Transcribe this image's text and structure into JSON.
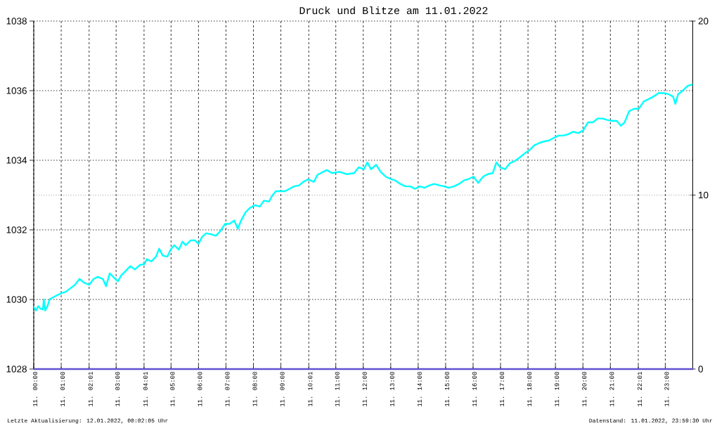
{
  "chart_data": {
    "type": "line",
    "title": "Druck und Blitze am 11.01.2022",
    "xlim": [
      "2022-01-11T00:00",
      "2022-01-12T00:00"
    ],
    "xticks": [
      {
        "value": "2022-01-11T00:00",
        "label": "11. 00:00"
      },
      {
        "value": "2022-01-11T01:00",
        "label": "11. 01:00"
      },
      {
        "value": "2022-01-11T02:01",
        "label": "11. 02:01"
      },
      {
        "value": "2022-01-11T03:00",
        "label": "11. 03:00"
      },
      {
        "value": "2022-01-11T04:01",
        "label": "11. 04:01"
      },
      {
        "value": "2022-01-11T05:00",
        "label": "11. 05:00"
      },
      {
        "value": "2022-01-11T06:00",
        "label": "11. 06:00"
      },
      {
        "value": "2022-01-11T07:00",
        "label": "11. 07:00"
      },
      {
        "value": "2022-01-11T08:00",
        "label": "11. 08:00"
      },
      {
        "value": "2022-01-11T09:00",
        "label": "11. 09:00"
      },
      {
        "value": "2022-01-11T10:01",
        "label": "11. 10:01"
      },
      {
        "value": "2022-01-11T11:00",
        "label": "11. 11:00"
      },
      {
        "value": "2022-01-11T12:00",
        "label": "11. 12:00"
      },
      {
        "value": "2022-01-11T13:00",
        "label": "11. 13:00"
      },
      {
        "value": "2022-01-11T14:00",
        "label": "11. 14:00"
      },
      {
        "value": "2022-01-11T15:00",
        "label": "11. 15:00"
      },
      {
        "value": "2022-01-11T16:00",
        "label": "11. 16:00"
      },
      {
        "value": "2022-01-11T17:00",
        "label": "11. 17:00"
      },
      {
        "value": "2022-01-11T18:00",
        "label": "11. 18:00"
      },
      {
        "value": "2022-01-11T19:00",
        "label": "11. 19:00"
      },
      {
        "value": "2022-01-11T20:00",
        "label": "11. 20:00"
      },
      {
        "value": "2022-01-11T21:00",
        "label": "11. 21:00"
      },
      {
        "value": "2022-01-11T22:01",
        "label": "11. 22:01"
      },
      {
        "value": "2022-01-11T23:00",
        "label": "11. 23:00"
      }
    ],
    "ylim": [
      1028,
      1038
    ],
    "yticks": [
      1028,
      1030,
      1032,
      1034,
      1036,
      1038
    ],
    "y2lim": [
      0,
      20
    ],
    "y2ticks": [
      0,
      10,
      20
    ],
    "grid": true,
    "ref_lines": [
      {
        "axis": "y2",
        "value": 10,
        "color": "#b2b2b2",
        "line_style": "dotted"
      }
    ],
    "series": [
      {
        "color": "#00ffff",
        "x": [
          "2022-01-11T00:00",
          "2022-01-11T00:05",
          "2022-01-11T00:10",
          "2022-01-11T00:14",
          "2022-01-11T00:20",
          "2022-01-11T00:22",
          "2022-01-11T00:25",
          "2022-01-11T00:30",
          "2022-01-11T00:35",
          "2022-01-11T00:45",
          "2022-01-11T01:00",
          "2022-01-11T01:10",
          "2022-01-11T01:20",
          "2022-01-11T01:30",
          "2022-01-11T01:40",
          "2022-01-11T01:50",
          "2022-01-11T02:01",
          "2022-01-11T02:11",
          "2022-01-11T02:20",
          "2022-01-11T02:31",
          "2022-01-11T02:38",
          "2022-01-11T02:46",
          "2022-01-11T02:56",
          "2022-01-11T03:04",
          "2022-01-11T03:11",
          "2022-01-11T03:21",
          "2022-01-11T03:31",
          "2022-01-11T03:41",
          "2022-01-11T03:52",
          "2022-01-11T04:02",
          "2022-01-11T04:07",
          "2022-01-11T04:17",
          "2022-01-11T04:27",
          "2022-01-11T04:34",
          "2022-01-11T04:42",
          "2022-01-11T04:52",
          "2022-01-11T04:59",
          "2022-01-11T05:07",
          "2022-01-11T05:17",
          "2022-01-11T05:25",
          "2022-01-11T05:32",
          "2022-01-11T05:43",
          "2022-01-11T05:52",
          "2022-01-11T06:00",
          "2022-01-11T06:08",
          "2022-01-11T06:17",
          "2022-01-11T06:28",
          "2022-01-11T06:38",
          "2022-01-11T06:48",
          "2022-01-11T06:58",
          "2022-01-11T07:08",
          "2022-01-11T07:18",
          "2022-01-11T07:26",
          "2022-01-11T07:33",
          "2022-01-11T07:43",
          "2022-01-11T07:53",
          "2022-01-11T08:04",
          "2022-01-11T08:14",
          "2022-01-11T08:23",
          "2022-01-11T08:34",
          "2022-01-11T08:41",
          "2022-01-11T08:49",
          "2022-01-11T08:59",
          "2022-01-11T09:09",
          "2022-01-11T09:19",
          "2022-01-11T09:29",
          "2022-01-11T09:40",
          "2022-01-11T09:49",
          "2022-01-11T09:59",
          "2022-01-11T10:12",
          "2022-01-11T10:20",
          "2022-01-11T10:30",
          "2022-01-11T10:40",
          "2022-01-11T10:52",
          "2022-01-11T11:08",
          "2022-01-11T11:24",
          "2022-01-11T11:40",
          "2022-01-11T11:50",
          "2022-01-11T12:01",
          "2022-01-11T12:09",
          "2022-01-11T12:17",
          "2022-01-11T12:28",
          "2022-01-11T12:38",
          "2022-01-11T12:49",
          "2022-01-11T13:00",
          "2022-01-11T13:10",
          "2022-01-11T13:21",
          "2022-01-11T13:32",
          "2022-01-11T13:43",
          "2022-01-11T13:53",
          "2022-01-11T14:04",
          "2022-01-11T14:14",
          "2022-01-11T14:25",
          "2022-01-11T14:35",
          "2022-01-11T14:46",
          "2022-01-11T14:57",
          "2022-01-11T15:07",
          "2022-01-11T15:18",
          "2022-01-11T15:29",
          "2022-01-11T15:40",
          "2022-01-11T15:50",
          "2022-01-11T16:01",
          "2022-01-11T16:11",
          "2022-01-11T16:22",
          "2022-01-11T16:32",
          "2022-01-11T16:43",
          "2022-01-11T16:51",
          "2022-01-11T16:59",
          "2022-01-11T17:10",
          "2022-01-11T17:20",
          "2022-01-11T17:31",
          "2022-01-11T17:42",
          "2022-01-11T17:52",
          "2022-01-11T18:03",
          "2022-01-11T18:14",
          "2022-01-11T18:25",
          "2022-01-11T18:35",
          "2022-01-11T18:46",
          "2022-01-11T18:56",
          "2022-01-11T19:07",
          "2022-01-11T19:17",
          "2022-01-11T19:28",
          "2022-01-11T19:39",
          "2022-01-11T19:49",
          "2022-01-11T20:00",
          "2022-01-11T20:11",
          "2022-01-11T20:22",
          "2022-01-11T20:32",
          "2022-01-11T20:43",
          "2022-01-11T20:53",
          "2022-01-11T21:04",
          "2022-01-11T21:14",
          "2022-01-11T21:23",
          "2022-01-11T21:31",
          "2022-01-11T21:41",
          "2022-01-11T21:52",
          "2022-01-11T22:02",
          "2022-01-11T22:13",
          "2022-01-11T22:24",
          "2022-01-11T22:34",
          "2022-01-11T22:45",
          "2022-01-11T22:56",
          "2022-01-11T23:07",
          "2022-01-11T23:17",
          "2022-01-11T23:22",
          "2022-01-11T23:28",
          "2022-01-11T23:38",
          "2022-01-11T23:49",
          "2022-01-11T23:59"
        ],
        "values": [
          1029.78,
          1029.68,
          1029.81,
          1029.74,
          1029.71,
          1030.0,
          1029.68,
          1029.81,
          1030.01,
          1030.08,
          1030.18,
          1030.22,
          1030.32,
          1030.42,
          1030.59,
          1030.48,
          1030.42,
          1030.59,
          1030.65,
          1030.59,
          1030.38,
          1030.75,
          1030.62,
          1030.52,
          1030.69,
          1030.82,
          1030.96,
          1030.86,
          1030.99,
          1031.02,
          1031.16,
          1031.09,
          1031.23,
          1031.46,
          1031.26,
          1031.23,
          1031.43,
          1031.56,
          1031.43,
          1031.66,
          1031.56,
          1031.7,
          1031.7,
          1031.6,
          1031.8,
          1031.9,
          1031.87,
          1031.83,
          1031.97,
          1032.17,
          1032.17,
          1032.27,
          1032.03,
          1032.27,
          1032.51,
          1032.64,
          1032.71,
          1032.67,
          1032.84,
          1032.81,
          1032.98,
          1033.11,
          1033.11,
          1033.11,
          1033.18,
          1033.25,
          1033.28,
          1033.38,
          1033.45,
          1033.38,
          1033.58,
          1033.65,
          1033.72,
          1033.63,
          1033.67,
          1033.6,
          1033.63,
          1033.8,
          1033.74,
          1033.94,
          1033.74,
          1033.87,
          1033.67,
          1033.53,
          1033.46,
          1033.42,
          1033.32,
          1033.25,
          1033.25,
          1033.18,
          1033.25,
          1033.21,
          1033.28,
          1033.32,
          1033.28,
          1033.25,
          1033.21,
          1033.25,
          1033.32,
          1033.42,
          1033.46,
          1033.53,
          1033.35,
          1033.53,
          1033.6,
          1033.63,
          1033.94,
          1033.8,
          1033.74,
          1033.91,
          1033.98,
          1034.08,
          1034.19,
          1034.29,
          1034.43,
          1034.5,
          1034.54,
          1034.57,
          1034.64,
          1034.71,
          1034.71,
          1034.75,
          1034.82,
          1034.78,
          1034.85,
          1035.09,
          1035.09,
          1035.2,
          1035.2,
          1035.16,
          1035.13,
          1035.13,
          1034.99,
          1035.09,
          1035.41,
          1035.48,
          1035.48,
          1035.69,
          1035.76,
          1035.83,
          1035.93,
          1035.93,
          1035.9,
          1035.83,
          1035.62,
          1035.9,
          1036.0,
          1036.14,
          1036.18
        ]
      },
      {
        "color": "#6050d0",
        "axis": "y2",
        "x": [
          "2022-01-11T00:00",
          "2022-01-12T00:00"
        ],
        "values": [
          0,
          0
        ]
      }
    ],
    "annotations": [
      "Letzte Aktualisierung: 12.01.2022, 00:02:05 Uhr",
      "Datenstand: 11.01.2022, 23:59:30 Uhr"
    ]
  }
}
